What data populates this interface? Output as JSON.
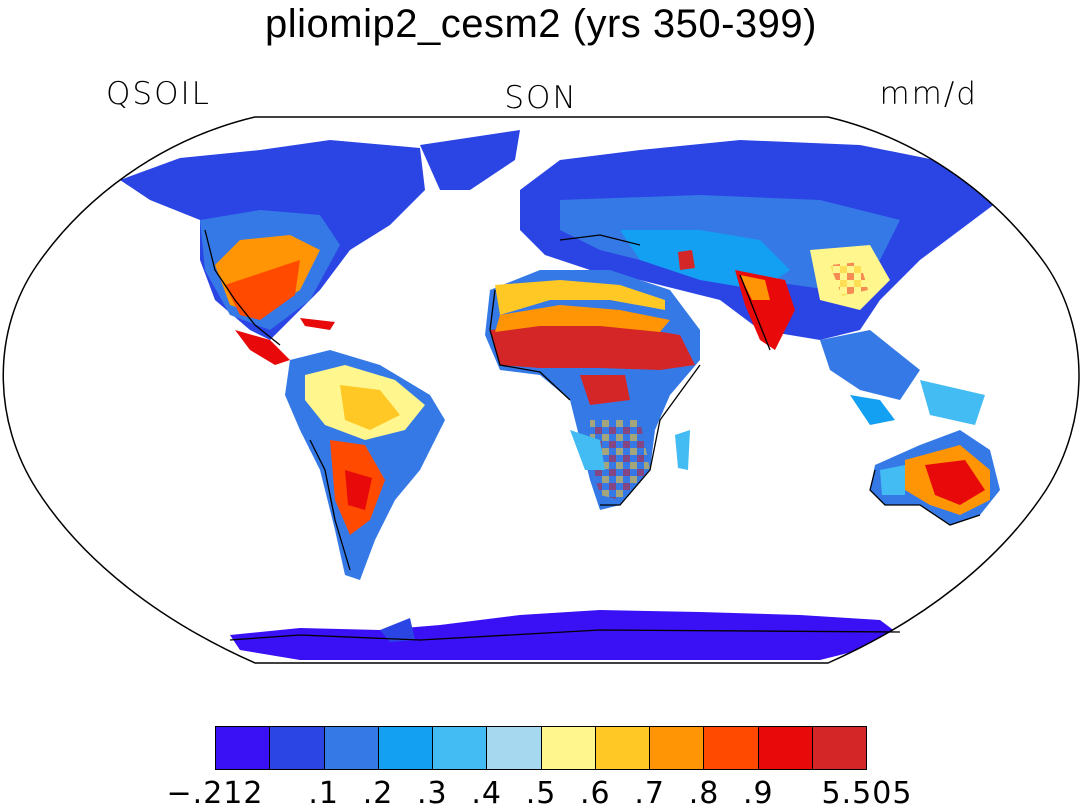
{
  "title": "pliomip2_cesm2 (yrs 350-399)",
  "left_label": "QSOIL",
  "center_label": "SON",
  "right_label": "mm/d",
  "legend": {
    "colors": [
      "#3a10f5",
      "#2b45e5",
      "#3579e6",
      "#14a0f2",
      "#42bcf2",
      "#a6d8ef",
      "#fff68e",
      "#ffc825",
      "#ff9405",
      "#ff4a00",
      "#e80a0a",
      "#d42626"
    ],
    "tick_labels": [
      "−.212",
      ".1",
      ".2",
      ".3",
      ".4",
      ".5",
      ".6",
      ".7",
      ".8",
      ".9",
      "5.505"
    ]
  }
}
